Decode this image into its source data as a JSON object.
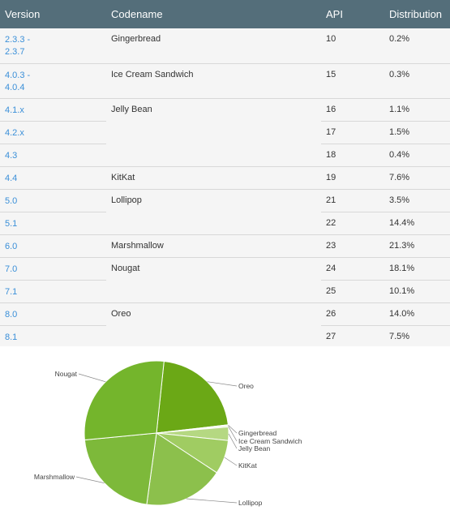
{
  "table": {
    "headers": {
      "version": "Version",
      "codename": "Codename",
      "api": "API",
      "distribution": "Distribution"
    },
    "rows": [
      {
        "version": "2.3.3 -\n2.3.7",
        "codename": "Gingerbread",
        "api": "10",
        "distribution": "0.2%"
      },
      {
        "version": "4.0.3 -\n4.0.4",
        "codename": "Ice Cream Sandwich",
        "api": "15",
        "distribution": "0.3%"
      },
      {
        "version": "4.1.x",
        "codename": "Jelly Bean",
        "api": "16",
        "distribution": "1.1%"
      },
      {
        "version": "4.2.x",
        "codename": "",
        "api": "17",
        "distribution": "1.5%"
      },
      {
        "version": "4.3",
        "codename": "",
        "api": "18",
        "distribution": "0.4%"
      },
      {
        "version": "4.4",
        "codename": "KitKat",
        "api": "19",
        "distribution": "7.6%"
      },
      {
        "version": "5.0",
        "codename": "Lollipop",
        "api": "21",
        "distribution": "3.5%"
      },
      {
        "version": "5.1",
        "codename": "",
        "api": "22",
        "distribution": "14.4%"
      },
      {
        "version": "6.0",
        "codename": "Marshmallow",
        "api": "23",
        "distribution": "21.3%"
      },
      {
        "version": "7.0",
        "codename": "Nougat",
        "api": "24",
        "distribution": "18.1%"
      },
      {
        "version": "7.1",
        "codename": "",
        "api": "25",
        "distribution": "10.1%"
      },
      {
        "version": "8.0",
        "codename": "Oreo",
        "api": "26",
        "distribution": "14.0%"
      },
      {
        "version": "8.1",
        "codename": "",
        "api": "27",
        "distribution": "7.5%"
      }
    ]
  },
  "chart_data": {
    "type": "pie",
    "slices": [
      {
        "label": "Oreo",
        "value": 21.5,
        "color": "#6ba816"
      },
      {
        "label": "Gingerbread",
        "value": 0.2,
        "color": "#e6f0d4"
      },
      {
        "label": "Ice Cream Sandwich",
        "value": 0.3,
        "color": "#d6e8b6"
      },
      {
        "label": "Jelly Bean",
        "value": 3.0,
        "color": "#b5d882"
      },
      {
        "label": "KitKat",
        "value": 7.6,
        "color": "#a0cc62"
      },
      {
        "label": "Lollipop",
        "value": 17.9,
        "color": "#8cc04c"
      },
      {
        "label": "Marshmallow",
        "value": 21.3,
        "color": "#7db93a"
      },
      {
        "label": "Nougat",
        "value": 28.2,
        "color": "#74b52c"
      }
    ]
  }
}
